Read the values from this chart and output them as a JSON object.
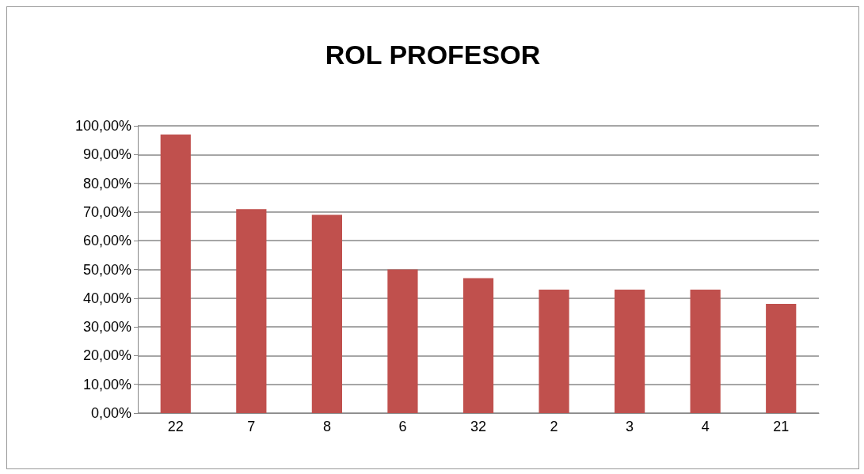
{
  "chart_data": {
    "type": "bar",
    "title": "ROL PROFESOR",
    "categories": [
      "22",
      "7",
      "8",
      "6",
      "32",
      "2",
      "3",
      "4",
      "21"
    ],
    "values": [
      97,
      71,
      69,
      50,
      47,
      43,
      43,
      43,
      38
    ],
    "color": "#c0504d",
    "ylim": [
      0,
      100
    ],
    "yticks": [
      {
        "value": 0,
        "label": "0,00%"
      },
      {
        "value": 10,
        "label": "10,00%"
      },
      {
        "value": 20,
        "label": "20,00%"
      },
      {
        "value": 30,
        "label": "30,00%"
      },
      {
        "value": 40,
        "label": "40,00%"
      },
      {
        "value": 50,
        "label": "50,00%"
      },
      {
        "value": 60,
        "label": "60,00%"
      },
      {
        "value": 70,
        "label": "70,00%"
      },
      {
        "value": 80,
        "label": "80,00%"
      },
      {
        "value": 90,
        "label": "90,00%"
      },
      {
        "value": 100,
        "label": "100,00%"
      }
    ],
    "grid": true
  }
}
